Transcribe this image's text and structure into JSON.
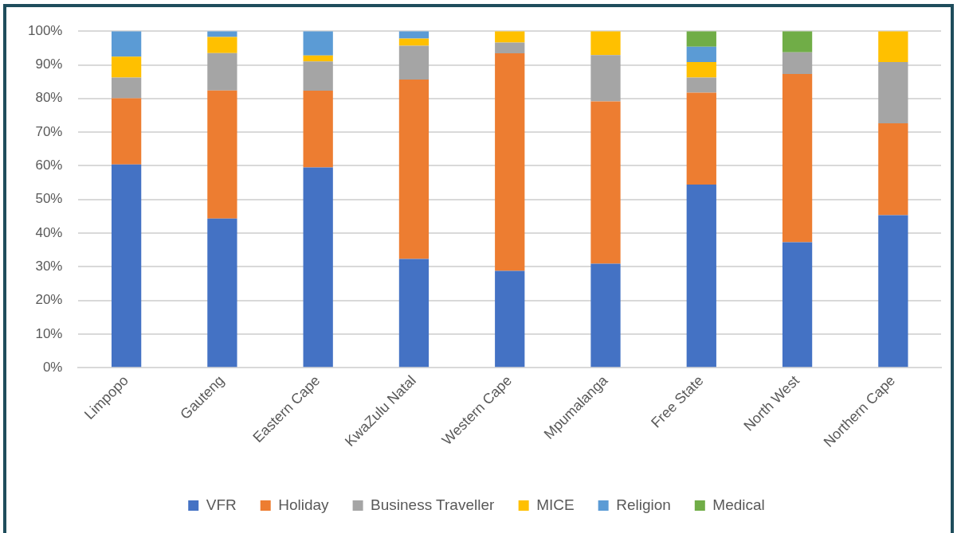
{
  "chart_data": {
    "type": "bar",
    "stacked": true,
    "categories": [
      "Limpopo",
      "Gauteng",
      "Eastern Cape",
      "KwaZulu Natal",
      "Western Cape",
      "Mpumalanga",
      "Free State",
      "North West",
      "Northern Cape"
    ],
    "series": [
      {
        "name": "VFR",
        "color": "#4472c4",
        "values": [
          60.4,
          44.3,
          59.5,
          32.3,
          28.8,
          30.9,
          54.4,
          37.3,
          45.3
        ]
      },
      {
        "name": "Holiday",
        "color": "#ed7d31",
        "values": [
          19.7,
          38.1,
          22.8,
          53.3,
          64.6,
          48.2,
          27.3,
          50.0,
          27.3
        ]
      },
      {
        "name": "Business Traveller",
        "color": "#a5a5a5",
        "values": [
          6.1,
          11.1,
          8.7,
          10.1,
          3.2,
          13.8,
          4.5,
          6.4,
          18.2
        ]
      },
      {
        "name": "MICE",
        "color": "#ffc000",
        "values": [
          6.2,
          4.8,
          1.8,
          2.1,
          3.4,
          7.1,
          4.6,
          null,
          9.2
        ]
      },
      {
        "name": "Religion",
        "color": "#5b9bd5",
        "values": [
          7.6,
          1.7,
          7.2,
          2.2,
          null,
          null,
          4.6,
          null,
          null
        ]
      },
      {
        "name": "Medical",
        "color": "#70ad47",
        "values": [
          null,
          null,
          null,
          null,
          null,
          null,
          4.6,
          6.3,
          null
        ]
      }
    ],
    "ylim": [
      0,
      100
    ],
    "yticks": [
      {
        "value": 0,
        "label": "0%"
      },
      {
        "value": 10,
        "label": "10%"
      },
      {
        "value": 20,
        "label": "20%"
      },
      {
        "value": 30,
        "label": "30%"
      },
      {
        "value": 40,
        "label": "40%"
      },
      {
        "value": 50,
        "label": "50%"
      },
      {
        "value": 60,
        "label": "60%"
      },
      {
        "value": 70,
        "label": "70%"
      },
      {
        "value": 80,
        "label": "80%"
      },
      {
        "value": 90,
        "label": "90%"
      },
      {
        "value": 100,
        "label": "100%"
      }
    ],
    "grid": "y",
    "legend": "bottom"
  }
}
